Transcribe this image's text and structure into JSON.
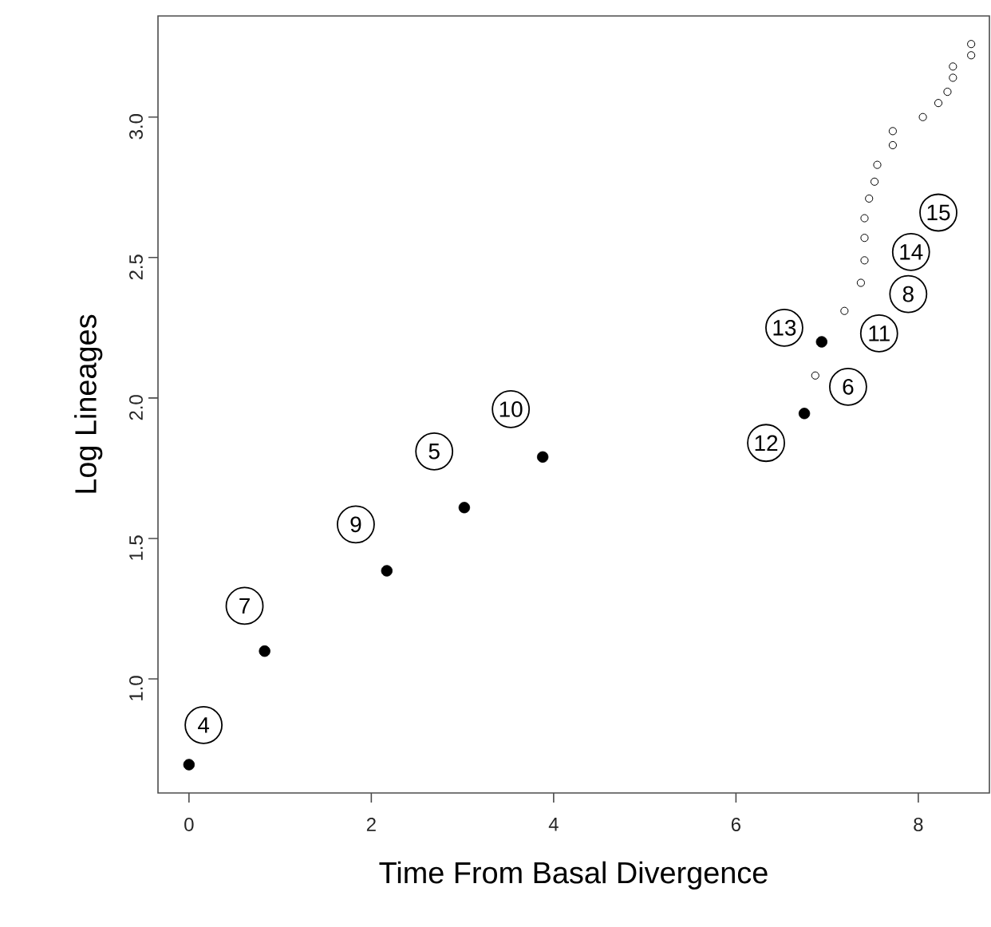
{
  "chart_data": {
    "type": "scatter",
    "xlabel": "Time From Basal Divergence",
    "ylabel": "Log Lineages",
    "xlim": [
      -0.34,
      8.78
    ],
    "ylim": [
      0.594,
      3.36
    ],
    "xticks": [
      0,
      2,
      4,
      6,
      8
    ],
    "yticks": [
      {
        "value": 1.0,
        "label": "1.0"
      },
      {
        "value": 1.5,
        "label": "1.5"
      },
      {
        "value": 2.0,
        "label": "2.0"
      },
      {
        "value": 2.5,
        "label": "2.5"
      },
      {
        "value": 3.0,
        "label": "3.0"
      }
    ],
    "marker": "circle",
    "series": [
      {
        "color": "#000000",
        "x": [
          0,
          0.83,
          2.17,
          3.02,
          3.88,
          6.75,
          6.94
        ],
        "values": [
          0.695,
          1.099,
          1.385,
          1.61,
          1.79,
          1.945,
          2.2
        ]
      },
      {
        "color": "#000000",
        "x": [
          6.87,
          7.19,
          7.37,
          7.41,
          7.41,
          7.41,
          7.46,
          7.52,
          7.55,
          7.72,
          7.72,
          8.05,
          8.22,
          8.32,
          8.38,
          8.38,
          8.58,
          8.58
        ],
        "values": [
          2.08,
          2.31,
          2.41,
          2.49,
          2.57,
          2.64,
          2.71,
          2.77,
          2.83,
          2.9,
          2.95,
          3.0,
          3.05,
          3.09,
          3.14,
          3.18,
          3.22,
          3.26
        ]
      }
    ],
    "annotations": [
      {
        "text": "4",
        "x": 0.16,
        "y": 0.836
      },
      {
        "text": "7",
        "x": 0.61,
        "y": 1.26
      },
      {
        "text": "9",
        "x": 1.83,
        "y": 1.55
      },
      {
        "text": "5",
        "x": 2.69,
        "y": 1.81
      },
      {
        "text": "10",
        "x": 3.53,
        "y": 1.96
      },
      {
        "text": "12",
        "x": 6.33,
        "y": 1.84
      },
      {
        "text": "13",
        "x": 6.53,
        "y": 2.25
      },
      {
        "text": "6",
        "x": 7.23,
        "y": 2.04
      },
      {
        "text": "11",
        "x": 7.57,
        "y": 2.23
      },
      {
        "text": "8",
        "x": 7.89,
        "y": 2.37
      },
      {
        "text": "14",
        "x": 7.92,
        "y": 2.52
      },
      {
        "text": "15",
        "x": 8.22,
        "y": 2.66
      }
    ]
  }
}
